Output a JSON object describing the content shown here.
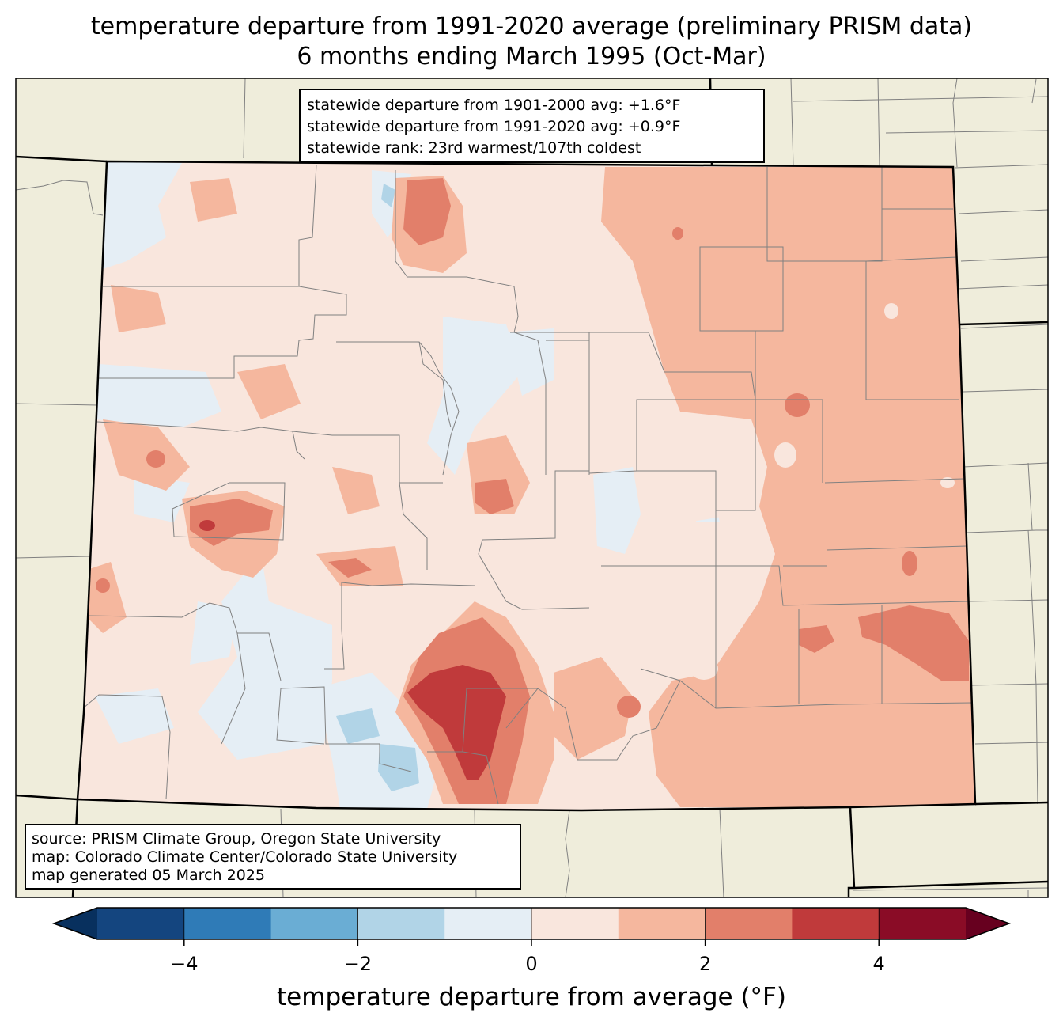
{
  "title": {
    "line1": "temperature departure from 1991-2020 average (preliminary PRISM data)",
    "line2": "6 months ending March 1995 (Oct-Mar)"
  },
  "stats": {
    "line1": "statewide departure from 1901-2000 avg: +1.6°F",
    "line2": "statewide departure from 1991-2020 avg: +0.9°F",
    "line3": "statewide rank: 23rd warmest/107th coldest"
  },
  "source": {
    "line1": "source: PRISM Climate Group, Oregon State University",
    "line2": "map: Colorado Climate Center/Colorado State University",
    "line3": "map generated 05 March 2025"
  },
  "colorbar": {
    "label": "temperature departure from average (°F)",
    "ticks": [
      "−4",
      "−2",
      "0",
      "2",
      "4"
    ],
    "tick_values": [
      -4,
      -2,
      0,
      2,
      4
    ],
    "range": [
      -5,
      5
    ],
    "bins": [
      {
        "from": -5,
        "to": -4,
        "color": "#14457f"
      },
      {
        "from": -4,
        "to": -3,
        "color": "#2f7bb7"
      },
      {
        "from": -3,
        "to": -2,
        "color": "#6aadd4"
      },
      {
        "from": -2,
        "to": -1,
        "color": "#b1d4e7"
      },
      {
        "from": -1,
        "to": 0,
        "color": "#e5eef5"
      },
      {
        "from": 0,
        "to": 1,
        "color": "#f9e6dd"
      },
      {
        "from": 1,
        "to": 2,
        "color": "#f5b79e"
      },
      {
        "from": 2,
        "to": 3,
        "color": "#e27f6a"
      },
      {
        "from": 3,
        "to": 4,
        "color": "#c03a3b"
      },
      {
        "from": 4,
        "to": 5,
        "color": "#8a0c26"
      }
    ],
    "under_color": "#08305e",
    "over_color": "#67001f"
  },
  "colors": {
    "land": "#efeddb",
    "county_line": "#808080",
    "state_line": "#000000"
  }
}
